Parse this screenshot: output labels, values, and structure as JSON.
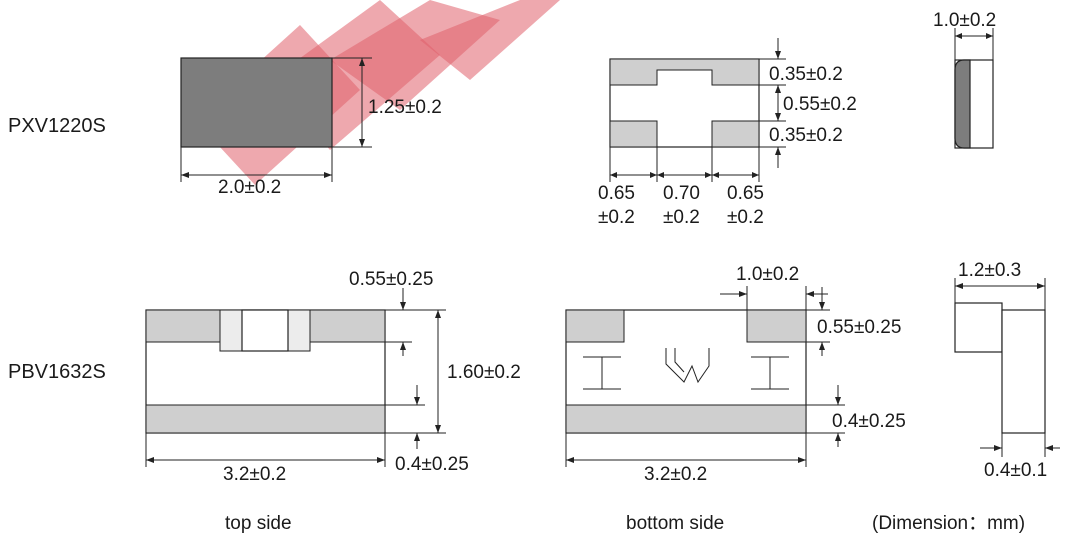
{
  "parts": [
    {
      "name": "PXV1220S"
    },
    {
      "name": "PBV1632S"
    }
  ],
  "dims": {
    "pxv_length": "2.0±0.2",
    "pxv_width": "1.25±0.2",
    "pxv_pad_top": "0.35±0.2",
    "pxv_gap": "0.55±0.2",
    "pxv_pad_bottom": "0.35±0.2",
    "pxv_w1_a": "0.65",
    "pxv_w1_b": "±0.2",
    "pxv_w2_a": "0.70",
    "pxv_w2_b": "±0.2",
    "pxv_w3_a": "0.65",
    "pxv_w3_b": "±0.2",
    "pxv_height": "1.0±0.2",
    "pbv_top_terminal": "0.55±0.25",
    "pbv_width": "1.60±0.2",
    "pbv_top_length": "3.2±0.2",
    "pbv_top_bottom_terminal": "0.4±0.25",
    "pbv_bot_pad_w": "1.0±0.2",
    "pbv_bot_top_terminal": "0.55±0.25",
    "pbv_bot_bottom_terminal": "0.4±0.25",
    "pbv_bot_length": "3.2±0.2",
    "pbv_height": "1.2±0.3",
    "pbv_side_terminal": "0.4±0.1"
  },
  "captions": {
    "top": "top side",
    "bottom": "bottom side",
    "unit": "(Dimension：mm)"
  },
  "colors": {
    "pad": "#cfcfcf",
    "dark_side": "#7d7d7d",
    "watermark": "#e0606c"
  }
}
